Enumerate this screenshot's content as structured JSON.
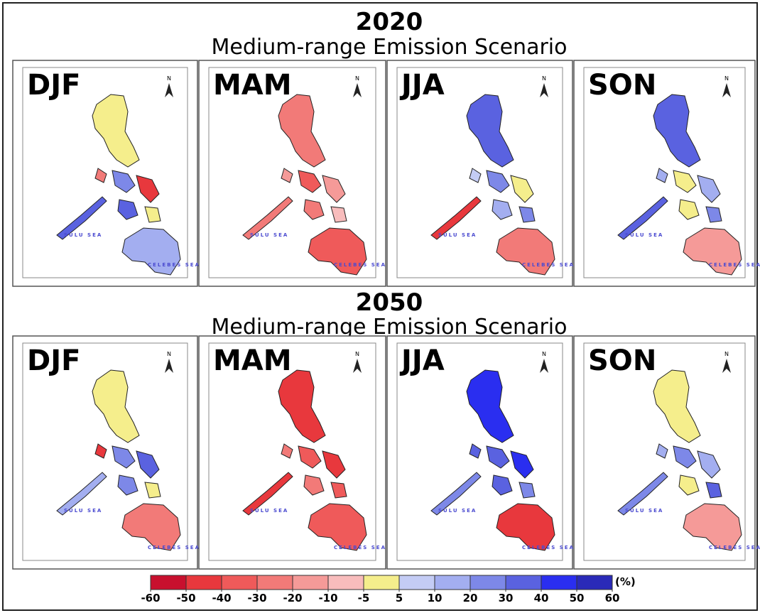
{
  "figure": [
    {
      "year": "2020",
      "subtitle": "Medium-range Emission Scenario",
      "panels": [
        "DJF",
        "MAM",
        "JJA",
        "SON"
      ]
    },
    {
      "year": "2050",
      "subtitle": "Medium-range Emission Scenario",
      "panels": [
        "DJF",
        "MAM",
        "JJA",
        "SON"
      ]
    }
  ],
  "north": "N",
  "map_labels": [
    "SULU SEA",
    "CELEBES SEA"
  ],
  "legend": {
    "ticks": [
      -60,
      -50,
      -40,
      -30,
      -20,
      -10,
      -5,
      5,
      10,
      20,
      30,
      40,
      50,
      60
    ],
    "colors": [
      "#c8102e",
      "#e8383d",
      "#ef5a5a",
      "#f27a78",
      "#f59a98",
      "#f8bcbc",
      "#f5ee8c",
      "#c4ccf5",
      "#a3aef0",
      "#7d88e8",
      "#5a62e0",
      "#2a2ef0",
      "#2a2ab8"
    ],
    "unit": "(%)"
  }
}
